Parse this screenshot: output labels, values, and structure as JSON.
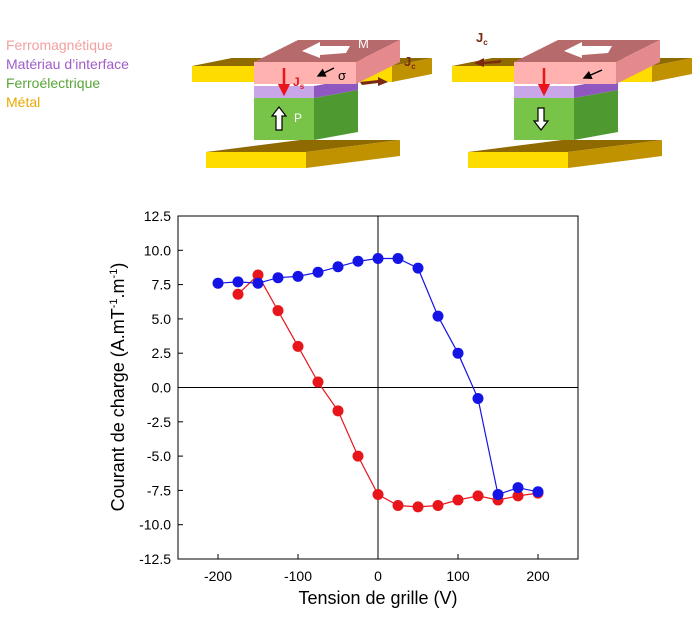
{
  "legend": {
    "items": [
      {
        "label": "Ferromagnétique",
        "color": "#F4A0A0"
      },
      {
        "label": "Matériau d’interface",
        "color": "#A05CC8"
      },
      {
        "label": "Ferroélectrique",
        "color": "#59A63A"
      },
      {
        "label": "Métal",
        "color": "#E9A800"
      }
    ]
  },
  "diagram": {
    "left": {
      "m_label": "M",
      "js_label": "J",
      "js_sub": "s",
      "sigma_label": "σ",
      "jc_label": "J",
      "jc_sub": "c",
      "p_label": "P"
    },
    "right": {
      "jc_label": "J",
      "jc_sub": "c"
    }
  },
  "chart_data": {
    "type": "scatter",
    "xlabel": "Tension de grille (V)",
    "ylabel": "Courant de charge (A.mT",
    "ylabel_sup1": "-1",
    "ylabel_mid": ".m",
    "ylabel_sup2": "-1",
    "ylabel_end": ")",
    "xlim": [
      -250,
      250
    ],
    "ylim": [
      -12.5,
      12.5
    ],
    "xticks": [
      -200,
      -100,
      0,
      100,
      200
    ],
    "xtick_labels": [
      "-200",
      "-100",
      "0",
      "100",
      "200"
    ],
    "yticks": [
      12.5,
      10,
      7.5,
      5,
      2.5,
      0,
      -2.5,
      -5,
      -7.5,
      -10,
      -12.5
    ],
    "ytick_labels": [
      "12.5",
      "10.0",
      "7.5",
      "5.0",
      "2.5",
      "0.0",
      "-2.5",
      "-5.0",
      "-7.5",
      "-10.0",
      "-12.5"
    ],
    "series": [
      {
        "name": "red",
        "color": "#E8151B",
        "x": [
          -175,
          -150,
          -125,
          -100,
          -75,
          -50,
          -25,
          0,
          25,
          50,
          75,
          100,
          125,
          150,
          175,
          200
        ],
        "y": [
          6.8,
          8.2,
          5.6,
          3.0,
          0.4,
          -1.7,
          -5.0,
          -7.8,
          -8.6,
          -8.7,
          -8.6,
          -8.2,
          -7.9,
          -8.2,
          -7.9,
          -7.7
        ]
      },
      {
        "name": "blue",
        "color": "#1414E6",
        "x": [
          -200,
          -175,
          -150,
          -125,
          -100,
          -75,
          -50,
          -25,
          0,
          25,
          50,
          75,
          100,
          125,
          150,
          175,
          200
        ],
        "y": [
          7.6,
          7.7,
          7.6,
          8.0,
          8.1,
          8.4,
          8.8,
          9.2,
          9.4,
          9.4,
          8.7,
          5.2,
          2.5,
          -0.8,
          -7.8,
          -7.3,
          -7.6
        ]
      }
    ]
  }
}
